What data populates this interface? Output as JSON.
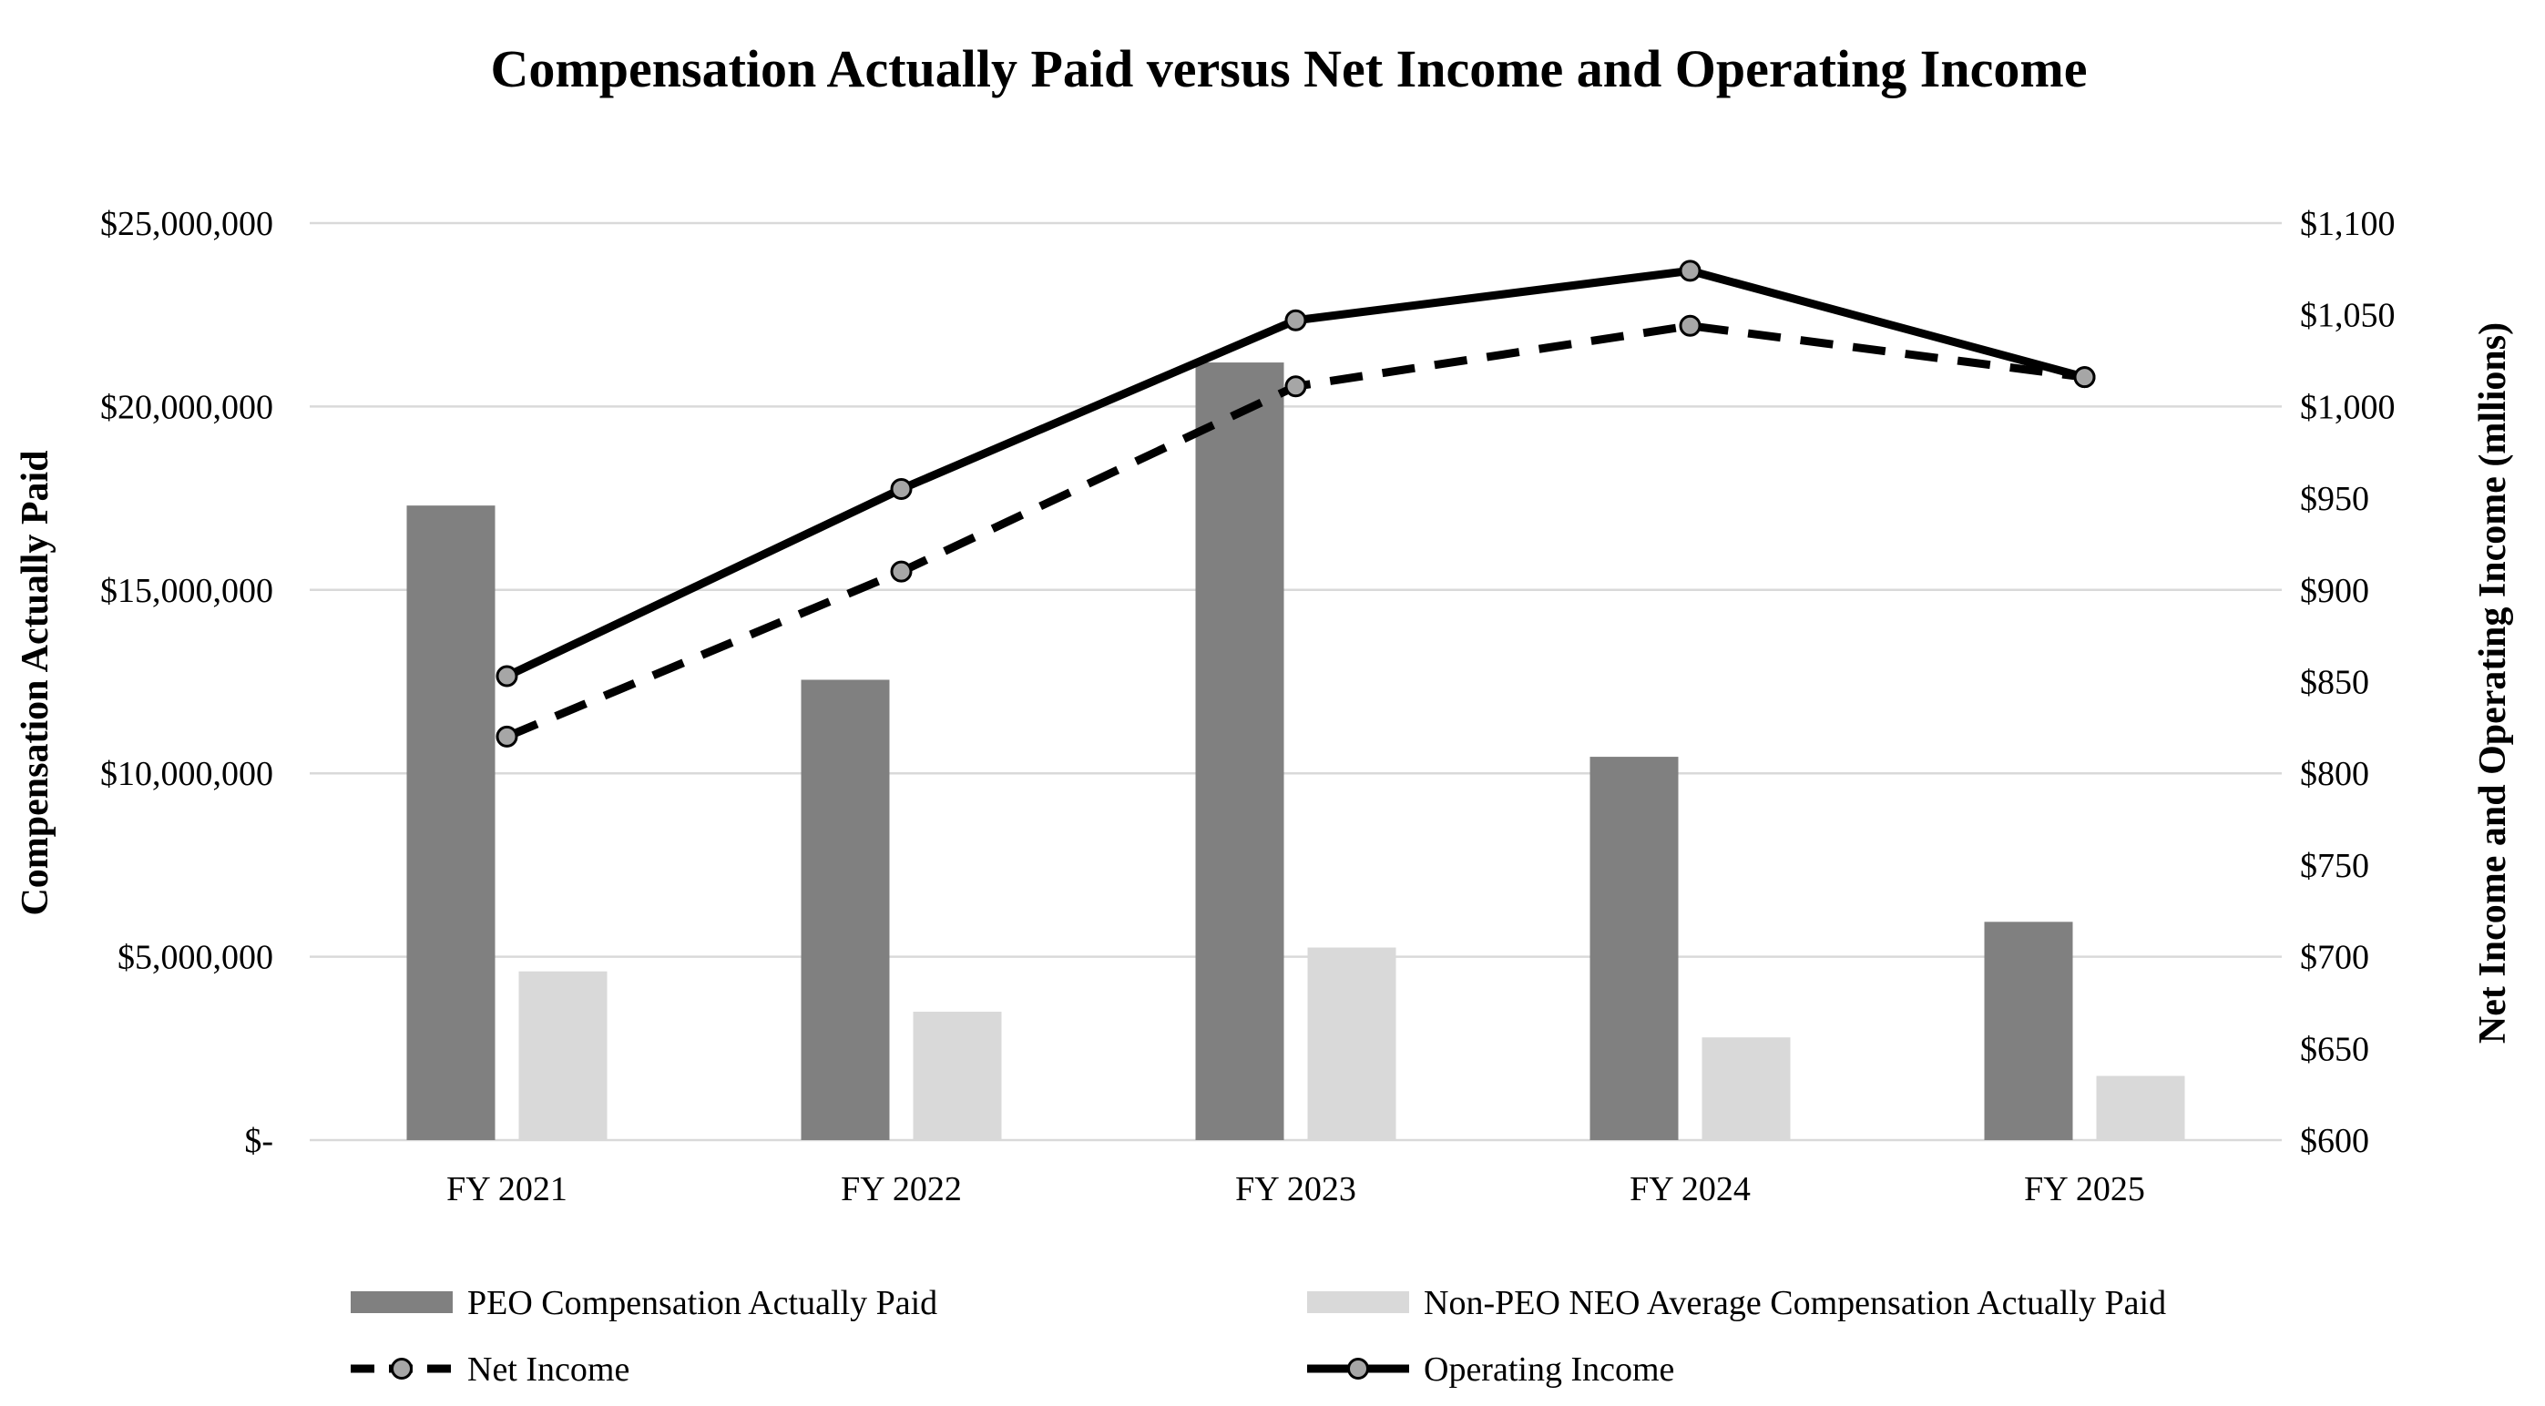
{
  "chart_data": {
    "type": "bar",
    "title": "Compensation Actually Paid versus Net Income and Operating Income",
    "categories": [
      "FY 2021",
      "FY 2022",
      "FY 2023",
      "FY 2024",
      "FY 2025"
    ],
    "ylabel": "Compensation Actually Paid",
    "y2label": "Net Income and Operating Income (mllions)",
    "ylim": [
      0,
      25000000
    ],
    "y2lim": [
      600,
      1100
    ],
    "yticks": [
      "$-",
      "$5,000,000",
      "$10,000,000",
      "$15,000,000",
      "$20,000,000",
      "$25,000,000"
    ],
    "y2ticks": [
      "$600",
      "$650",
      "$700",
      "$750",
      "$800",
      "$850",
      "$900",
      "$950",
      "$1,000",
      "$1,050",
      "$1,100"
    ],
    "grid": true,
    "legend_position": "bottom",
    "series": [
      {
        "name": "PEO Compensation Actually Paid",
        "type": "bar",
        "axis": "left",
        "color": "#808080",
        "values": [
          17300000,
          12550000,
          21200000,
          10450000,
          5950000
        ]
      },
      {
        "name": "Non-PEO NEO Average Compensation Actually Paid",
        "type": "bar",
        "axis": "left",
        "color": "#d9d9d9",
        "values": [
          4600000,
          3500000,
          5250000,
          2800000,
          1750000
        ]
      },
      {
        "name": "Net Income",
        "type": "line",
        "axis": "right",
        "style": "dashed",
        "color": "#000000",
        "values": [
          820,
          910,
          1011,
          1044,
          1016
        ]
      },
      {
        "name": "Operating Income",
        "type": "line",
        "axis": "right",
        "style": "solid",
        "color": "#000000",
        "values": [
          853,
          955,
          1047,
          1074,
          1016
        ]
      }
    ],
    "marker_color": "#a6a6a6",
    "grid_color": "#d9d9d9"
  }
}
